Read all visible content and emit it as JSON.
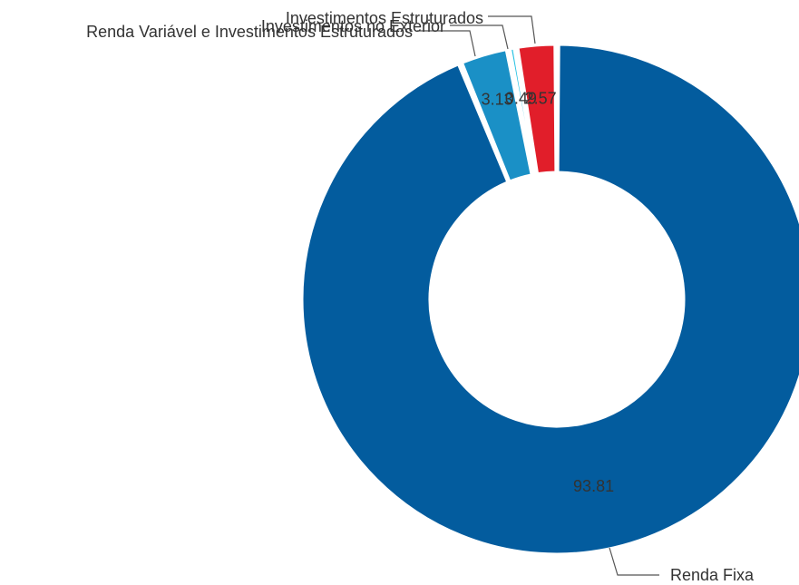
{
  "chart_data": {
    "type": "pie",
    "variant": "donut",
    "categories": [
      "Renda Fixa",
      "Renda Variável e Investimentos Estruturados",
      "Investimentos no Exterior",
      "Investimentos Estruturados"
    ],
    "values": [
      93.81,
      3.13,
      0.49,
      2.57
    ],
    "value_labels": [
      "93.81",
      "3.13",
      "0.49",
      "2.57"
    ],
    "colors": [
      "#035c9e",
      "#1a90c6",
      "#22c0e2",
      "#e11e2a"
    ],
    "legend": "none"
  }
}
